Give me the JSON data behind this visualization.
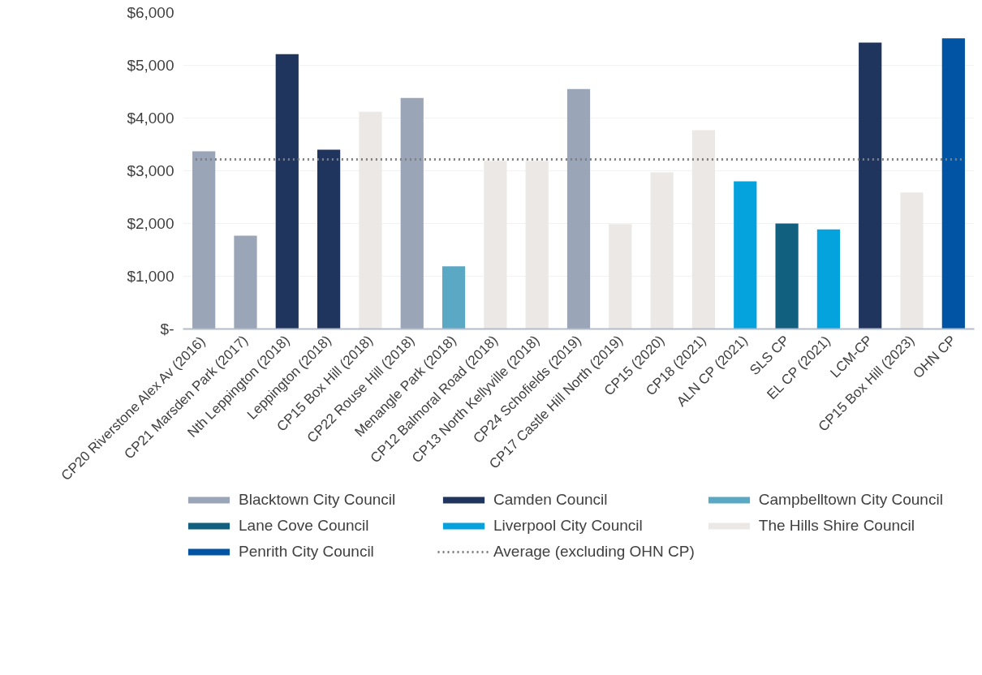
{
  "chart_data": {
    "type": "bar",
    "categories": [
      "CP20 Riverstone Alex Av (2016)",
      "CP21 Marsden Park (2017)",
      "Nth Leppington (2018)",
      "Leppington (2018)",
      "CP15 Box Hill (2018)",
      "CP22 Rouse Hill (2018)",
      "Menangle Park (2018)",
      "CP12 Balmoral Road (2018)",
      "CP13 North Kellyville (2018)",
      "CP24 Schofields (2019)",
      "CP17 Castle Hill North (2019)",
      "CP15 (2020)",
      "CP18 (2021)",
      "ALN CP (2021)",
      "SLS CP",
      "EL CP (2021)",
      "LCM-CP",
      "CP15 Box Hill (2023)",
      "OHN CP"
    ],
    "series": [
      {
        "name": "Blacktown City Council",
        "color": "#9aa5b8",
        "values": [
          3370,
          1770,
          null,
          null,
          null,
          4380,
          null,
          null,
          null,
          4550,
          null,
          null,
          null,
          null,
          null,
          null,
          null,
          null,
          null
        ]
      },
      {
        "name": "Camden Council",
        "color": "#1f355e",
        "values": [
          null,
          null,
          5210,
          3400,
          null,
          null,
          null,
          null,
          null,
          null,
          null,
          null,
          null,
          null,
          null,
          null,
          5430,
          null,
          null
        ]
      },
      {
        "name": "Campbelltown City Council",
        "color": "#5ba8c4",
        "values": [
          null,
          null,
          null,
          null,
          null,
          null,
          1190,
          null,
          null,
          null,
          null,
          null,
          null,
          null,
          null,
          null,
          null,
          null,
          null
        ]
      },
      {
        "name": "Lane Cove Council",
        "color": "#11607f",
        "values": [
          null,
          null,
          null,
          null,
          null,
          null,
          null,
          null,
          null,
          null,
          null,
          null,
          null,
          null,
          2000,
          null,
          null,
          null,
          null
        ]
      },
      {
        "name": "Liverpool City Council",
        "color": "#04a3de",
        "values": [
          null,
          null,
          null,
          null,
          null,
          null,
          null,
          null,
          null,
          null,
          null,
          null,
          null,
          2800,
          null,
          1890,
          null,
          null,
          null
        ]
      },
      {
        "name": "The Hills Shire Council",
        "color": "#ece8e5",
        "values": [
          null,
          null,
          null,
          null,
          4120,
          null,
          null,
          3190,
          3190,
          null,
          1990,
          2970,
          3770,
          null,
          null,
          null,
          null,
          2590,
          null
        ]
      },
      {
        "name": "Penrith City Council",
        "color": "#0054a3",
        "values": [
          null,
          null,
          null,
          null,
          null,
          null,
          null,
          null,
          null,
          null,
          null,
          null,
          null,
          null,
          null,
          null,
          null,
          null,
          5510
        ]
      }
    ],
    "ref_lines": [
      {
        "axis": "y",
        "value": 3215,
        "label": "Average (excluding OHN CP)",
        "color": "#7f7f7f",
        "line_style": "dotted"
      }
    ],
    "ylim": [
      0,
      6000
    ],
    "yticks": [
      {
        "value": 0,
        "label": "$-"
      },
      {
        "value": 1000,
        "label": "$1,000"
      },
      {
        "value": 2000,
        "label": "$2,000"
      },
      {
        "value": 3000,
        "label": "$3,000"
      },
      {
        "value": 4000,
        "label": "$4,000"
      },
      {
        "value": 5000,
        "label": "$5,000"
      },
      {
        "value": 6000,
        "label": "$6,000"
      }
    ],
    "grid": "y",
    "legend": "bottom"
  }
}
